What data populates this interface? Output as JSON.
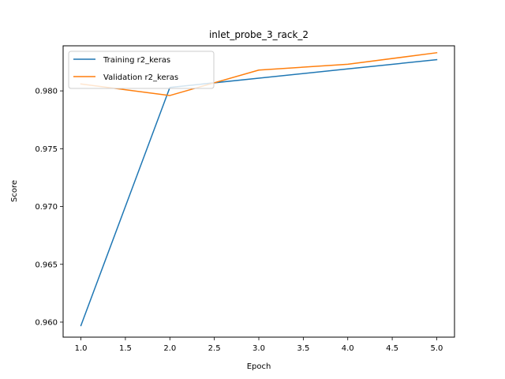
{
  "chart_data": {
    "type": "line",
    "title": "inlet_probe_3_rack_2",
    "xlabel": "Epoch",
    "ylabel": "Score",
    "x": [
      1,
      2,
      3,
      4,
      5
    ],
    "xlim": [
      0.8,
      5.2
    ],
    "ylim": [
      0.9587,
      0.9839
    ],
    "xticks": [
      1.0,
      1.5,
      2.0,
      2.5,
      3.0,
      3.5,
      4.0,
      4.5,
      5.0
    ],
    "xtick_labels": [
      "1.0",
      "1.5",
      "2.0",
      "2.5",
      "3.0",
      "3.5",
      "4.0",
      "4.5",
      "5.0"
    ],
    "yticks": [
      0.96,
      0.965,
      0.97,
      0.975,
      0.98
    ],
    "ytick_labels": [
      "0.960",
      "0.965",
      "0.970",
      "0.975",
      "0.980"
    ],
    "grid": false,
    "legend_position": "upper-left",
    "series": [
      {
        "name": "Training r2_keras",
        "color": "#1f77b4",
        "values": [
          0.9597,
          0.9803,
          0.9811,
          0.9819,
          0.9827
        ]
      },
      {
        "name": "Validation r2_keras",
        "color": "#ff7f0e",
        "values": [
          0.9806,
          0.9796,
          0.9818,
          0.9823,
          0.9833
        ]
      }
    ]
  }
}
